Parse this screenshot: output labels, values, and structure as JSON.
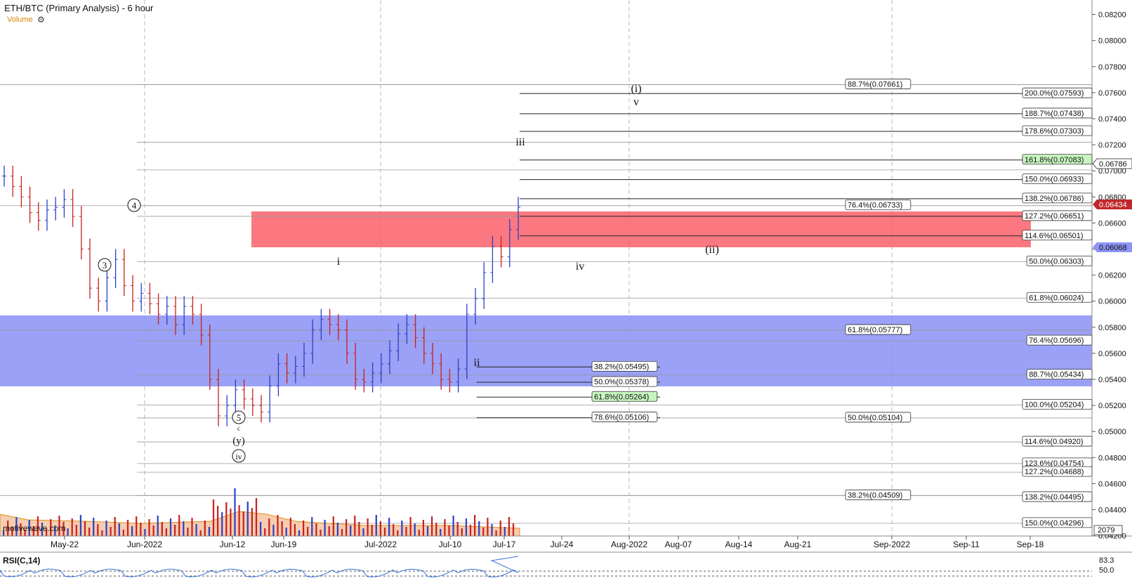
{
  "header": {
    "title": "ETH/BTC (Primary Analysis) - 6 hour",
    "volume_label": "Volume",
    "settings_icon": "gear-icon"
  },
  "watermark": "motivewave.com",
  "rsi": {
    "label": "RSI(C,14)",
    "value_top": "83.3",
    "value_mid": "50.0"
  },
  "volume_readout": "2079",
  "price_axis": {
    "ticks": [
      "0.08200",
      "0.08000",
      "0.07800",
      "0.07600",
      "0.07400",
      "0.07200",
      "0.07000",
      "0.06800",
      "0.06600",
      "0.06400",
      "0.06200",
      "0.06000",
      "0.05800",
      "0.05600",
      "0.05400",
      "0.05200",
      "0.05000",
      "0.04800",
      "0.04600",
      "0.04400",
      "0.04200"
    ],
    "last_price": "0.06786",
    "marker_red": "0.06434",
    "marker_blue": "0.06068"
  },
  "time_axis": [
    "May-22",
    "Jun-2022",
    "Jun-12",
    "Jun-19",
    "Jul-2022",
    "Jul-10",
    "Jul-17",
    "Jul-24",
    "Aug-2022",
    "Aug-07",
    "Aug-14",
    "Aug-21",
    "Sep-2022",
    "Sep-11",
    "Sep-18"
  ],
  "wave_labels": {
    "c3": "3",
    "c4": "4",
    "c5": "5",
    "c": "c",
    "y": "(y)",
    "civ": "iv",
    "i": "i",
    "ii": "ii",
    "iii": "iii",
    "iv": "iv",
    "v": "v",
    "pi": "(i)",
    "pii": "(ii)"
  },
  "chart_data": {
    "type": "candlestick",
    "title": "ETH/BTC (Primary Analysis) - 6 hour",
    "y_range": [
      0.0418,
      0.083
    ],
    "series_approx_closes": [
      0.0696,
      0.0688,
      0.068,
      0.0668,
      0.0662,
      0.067,
      0.0672,
      0.0678,
      0.0665,
      0.064,
      0.061,
      0.06,
      0.0618,
      0.0632,
      0.0612,
      0.06,
      0.0606,
      0.0598,
      0.059,
      0.0596,
      0.0582,
      0.0596,
      0.059,
      0.0574,
      0.054,
      0.0512,
      0.052,
      0.0532,
      0.0525,
      0.052,
      0.0515,
      0.0535,
      0.0552,
      0.0545,
      0.055,
      0.056,
      0.0578,
      0.0586,
      0.0582,
      0.0578,
      0.056,
      0.054,
      0.0538,
      0.0545,
      0.0552,
      0.0562,
      0.0575,
      0.0582,
      0.0572,
      0.056,
      0.0552,
      0.054,
      0.0538,
      0.0548,
      0.059,
      0.0602,
      0.0622,
      0.0642,
      0.0634,
      0.0655,
      0.0672
    ],
    "zones": [
      {
        "name": "resistance",
        "color": "#fa5a64",
        "from": 0.06068,
        "to": 0.06372
      },
      {
        "name": "support",
        "color": "#8c94f5",
        "from": 0.05064,
        "to": 0.05558
      }
    ],
    "fib_labels_far": [
      {
        "text": "88.7%(0.07661)",
        "boxed": true
      },
      {
        "text": "76.4%(0.06733)",
        "boxed": true
      },
      {
        "text": "61.8%(0.05777)",
        "boxed": true
      },
      {
        "text": "50.0%(0.05104)",
        "boxed": true
      },
      {
        "text": "38.2%(0.04509)",
        "boxed": true
      }
    ],
    "fib_labels_right": [
      {
        "text": "200.0%(0.07593)",
        "highlight": false
      },
      {
        "text": "188.7%(0.07438)",
        "highlight": false
      },
      {
        "text": "178.6%(0.07303)",
        "highlight": false
      },
      {
        "text": "161.8%(0.07083)",
        "highlight": true
      },
      {
        "text": "150.0%(0.06933)",
        "highlight": false
      },
      {
        "text": "138.2%(0.06786)",
        "highlight": false
      },
      {
        "text": "127.2%(0.06651)",
        "highlight": false
      },
      {
        "text": "114.6%(0.06501)",
        "highlight": false
      },
      {
        "text": "50.0%(0.06303)",
        "highlight": false
      },
      {
        "text": "61.8%(0.06024)",
        "highlight": false
      },
      {
        "text": "76.4%(0.05696)",
        "highlight": false
      },
      {
        "text": "88.7%(0.05434)",
        "highlight": false
      },
      {
        "text": "100.0%(0.05204)",
        "highlight": false
      },
      {
        "text": "114.6%(0.04920)",
        "highlight": false
      },
      {
        "text": "123.6%(0.04754)",
        "highlight": false
      },
      {
        "text": "127.2%(0.04688)",
        "highlight": false
      },
      {
        "text": "138.2%(0.04495)",
        "highlight": false
      },
      {
        "text": "150.0%(0.04296)",
        "highlight": false
      }
    ],
    "fib_labels_mid": [
      {
        "text": "38.2%(0.05495)",
        "highlight": false
      },
      {
        "text": "50.0%(0.05378)",
        "highlight": false
      },
      {
        "text": "61.8%(0.05264)",
        "highlight": true
      },
      {
        "text": "78.6%(0.05106)",
        "highlight": false
      }
    ],
    "colors": {
      "up": "#2b40c8",
      "down": "#c82020",
      "rsi": "#3a6fd8"
    }
  }
}
